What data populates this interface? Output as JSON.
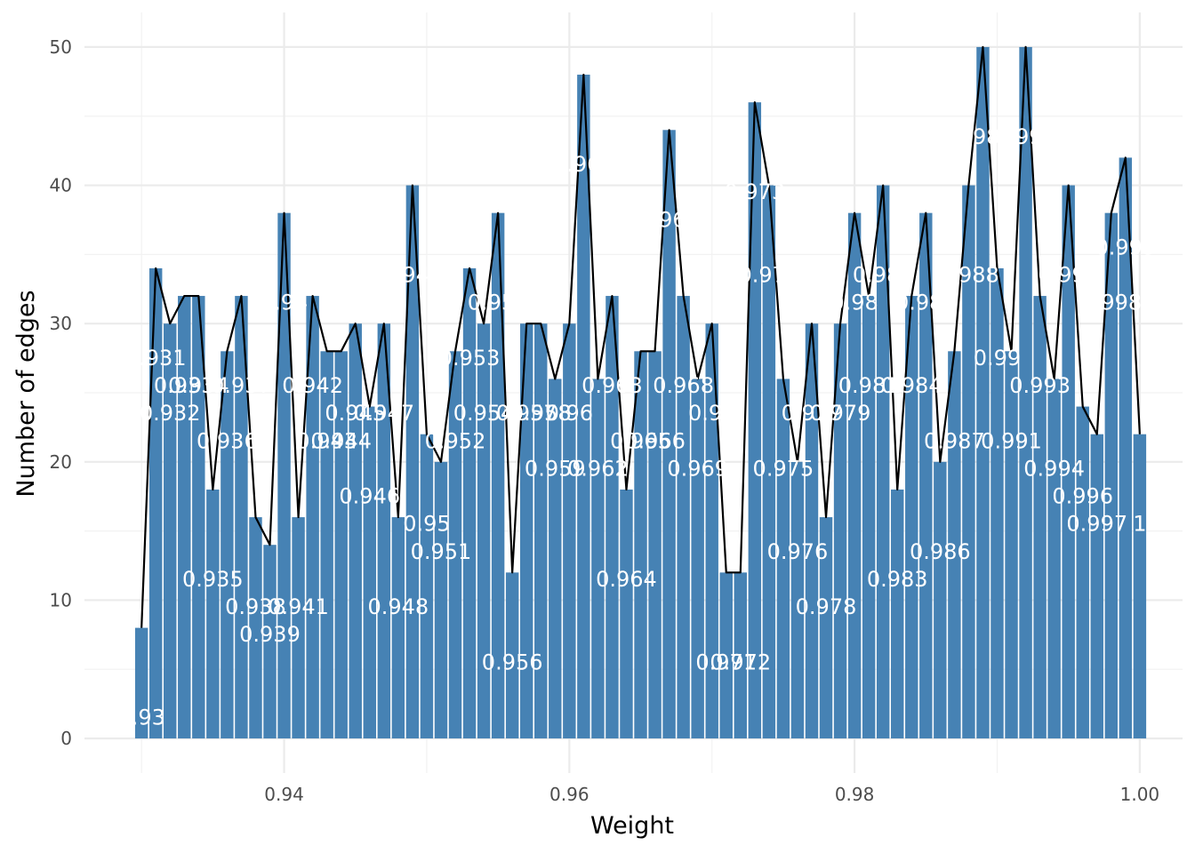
{
  "chart_data": {
    "type": "bar",
    "xlabel": "Weight",
    "ylabel": "Number of edges",
    "xlim": [
      0.926,
      1.003
    ],
    "ylim": [
      -2.5,
      52.5
    ],
    "x_ticks": [
      0.94,
      0.96,
      0.98,
      1.0
    ],
    "x_tick_labels": [
      "0.94",
      "0.96",
      "0.98",
      "1.00"
    ],
    "y_ticks": [
      0,
      10,
      20,
      30,
      40,
      50
    ],
    "y_tick_labels": [
      "0",
      "10",
      "20",
      "30",
      "40",
      "50"
    ],
    "grid": true,
    "bar_color": "#4682B4",
    "line_color": "#000000",
    "label_color": "#FFFFFF",
    "x": [
      0.93,
      0.931,
      0.932,
      0.933,
      0.934,
      0.935,
      0.936,
      0.937,
      0.938,
      0.939,
      0.94,
      0.941,
      0.942,
      0.943,
      0.944,
      0.945,
      0.946,
      0.947,
      0.948,
      0.949,
      0.95,
      0.951,
      0.952,
      0.953,
      0.954,
      0.955,
      0.956,
      0.957,
      0.958,
      0.959,
      0.96,
      0.961,
      0.962,
      0.963,
      0.964,
      0.965,
      0.966,
      0.967,
      0.968,
      0.969,
      0.97,
      0.971,
      0.972,
      0.973,
      0.974,
      0.975,
      0.976,
      0.977,
      0.978,
      0.979,
      0.98,
      0.981,
      0.982,
      0.983,
      0.984,
      0.985,
      0.986,
      0.987,
      0.988,
      0.989,
      0.99,
      0.991,
      0.992,
      0.993,
      0.994,
      0.995,
      0.996,
      0.997,
      0.998,
      0.999,
      1.0
    ],
    "values": [
      8,
      34,
      30,
      32,
      32,
      18,
      28,
      32,
      16,
      14,
      38,
      16,
      32,
      28,
      28,
      30,
      24,
      30,
      16,
      40,
      22,
      20,
      28,
      34,
      30,
      38,
      12,
      30,
      30,
      26,
      30,
      48,
      26,
      32,
      18,
      28,
      28,
      44,
      32,
      26,
      30,
      12,
      12,
      46,
      40,
      26,
      20,
      30,
      16,
      30,
      38,
      32,
      40,
      18,
      32,
      38,
      20,
      28,
      40,
      50,
      34,
      28,
      50,
      32,
      26,
      40,
      24,
      22,
      38,
      42,
      22
    ],
    "labels": [
      "0.93",
      "0.931",
      "0.932",
      "0.933",
      "0.934",
      "0.935",
      "0.936",
      "0.937",
      "0.938",
      "0.939",
      "0.94",
      "0.941",
      "0.942",
      "0.943",
      "0.944",
      "0.945",
      "0.946",
      "0.947",
      "0.948",
      "0.949",
      "0.95",
      "0.951",
      "0.952",
      "0.953",
      "0.954",
      "0.955",
      "0.956",
      "0.957",
      "0.958",
      "0.959",
      "0.96",
      "0.961",
      "0.962",
      "0.963",
      "0.964",
      "0.965",
      "0.966",
      "0.967",
      "0.968",
      "0.969",
      "0.97",
      "0.971",
      "0.972",
      "0.973",
      "0.974",
      "0.975",
      "0.976",
      "0.977",
      "0.978",
      "0.979",
      "0.98",
      "0.981",
      "0.982",
      "0.983",
      "0.984",
      "0.985",
      "0.986",
      "0.987",
      "0.988",
      "0.989",
      "0.99",
      "0.991",
      "0.992",
      "0.993",
      "0.994",
      "0.995",
      "0.996",
      "0.997",
      "0.998",
      "0.999",
      "1"
    ]
  }
}
